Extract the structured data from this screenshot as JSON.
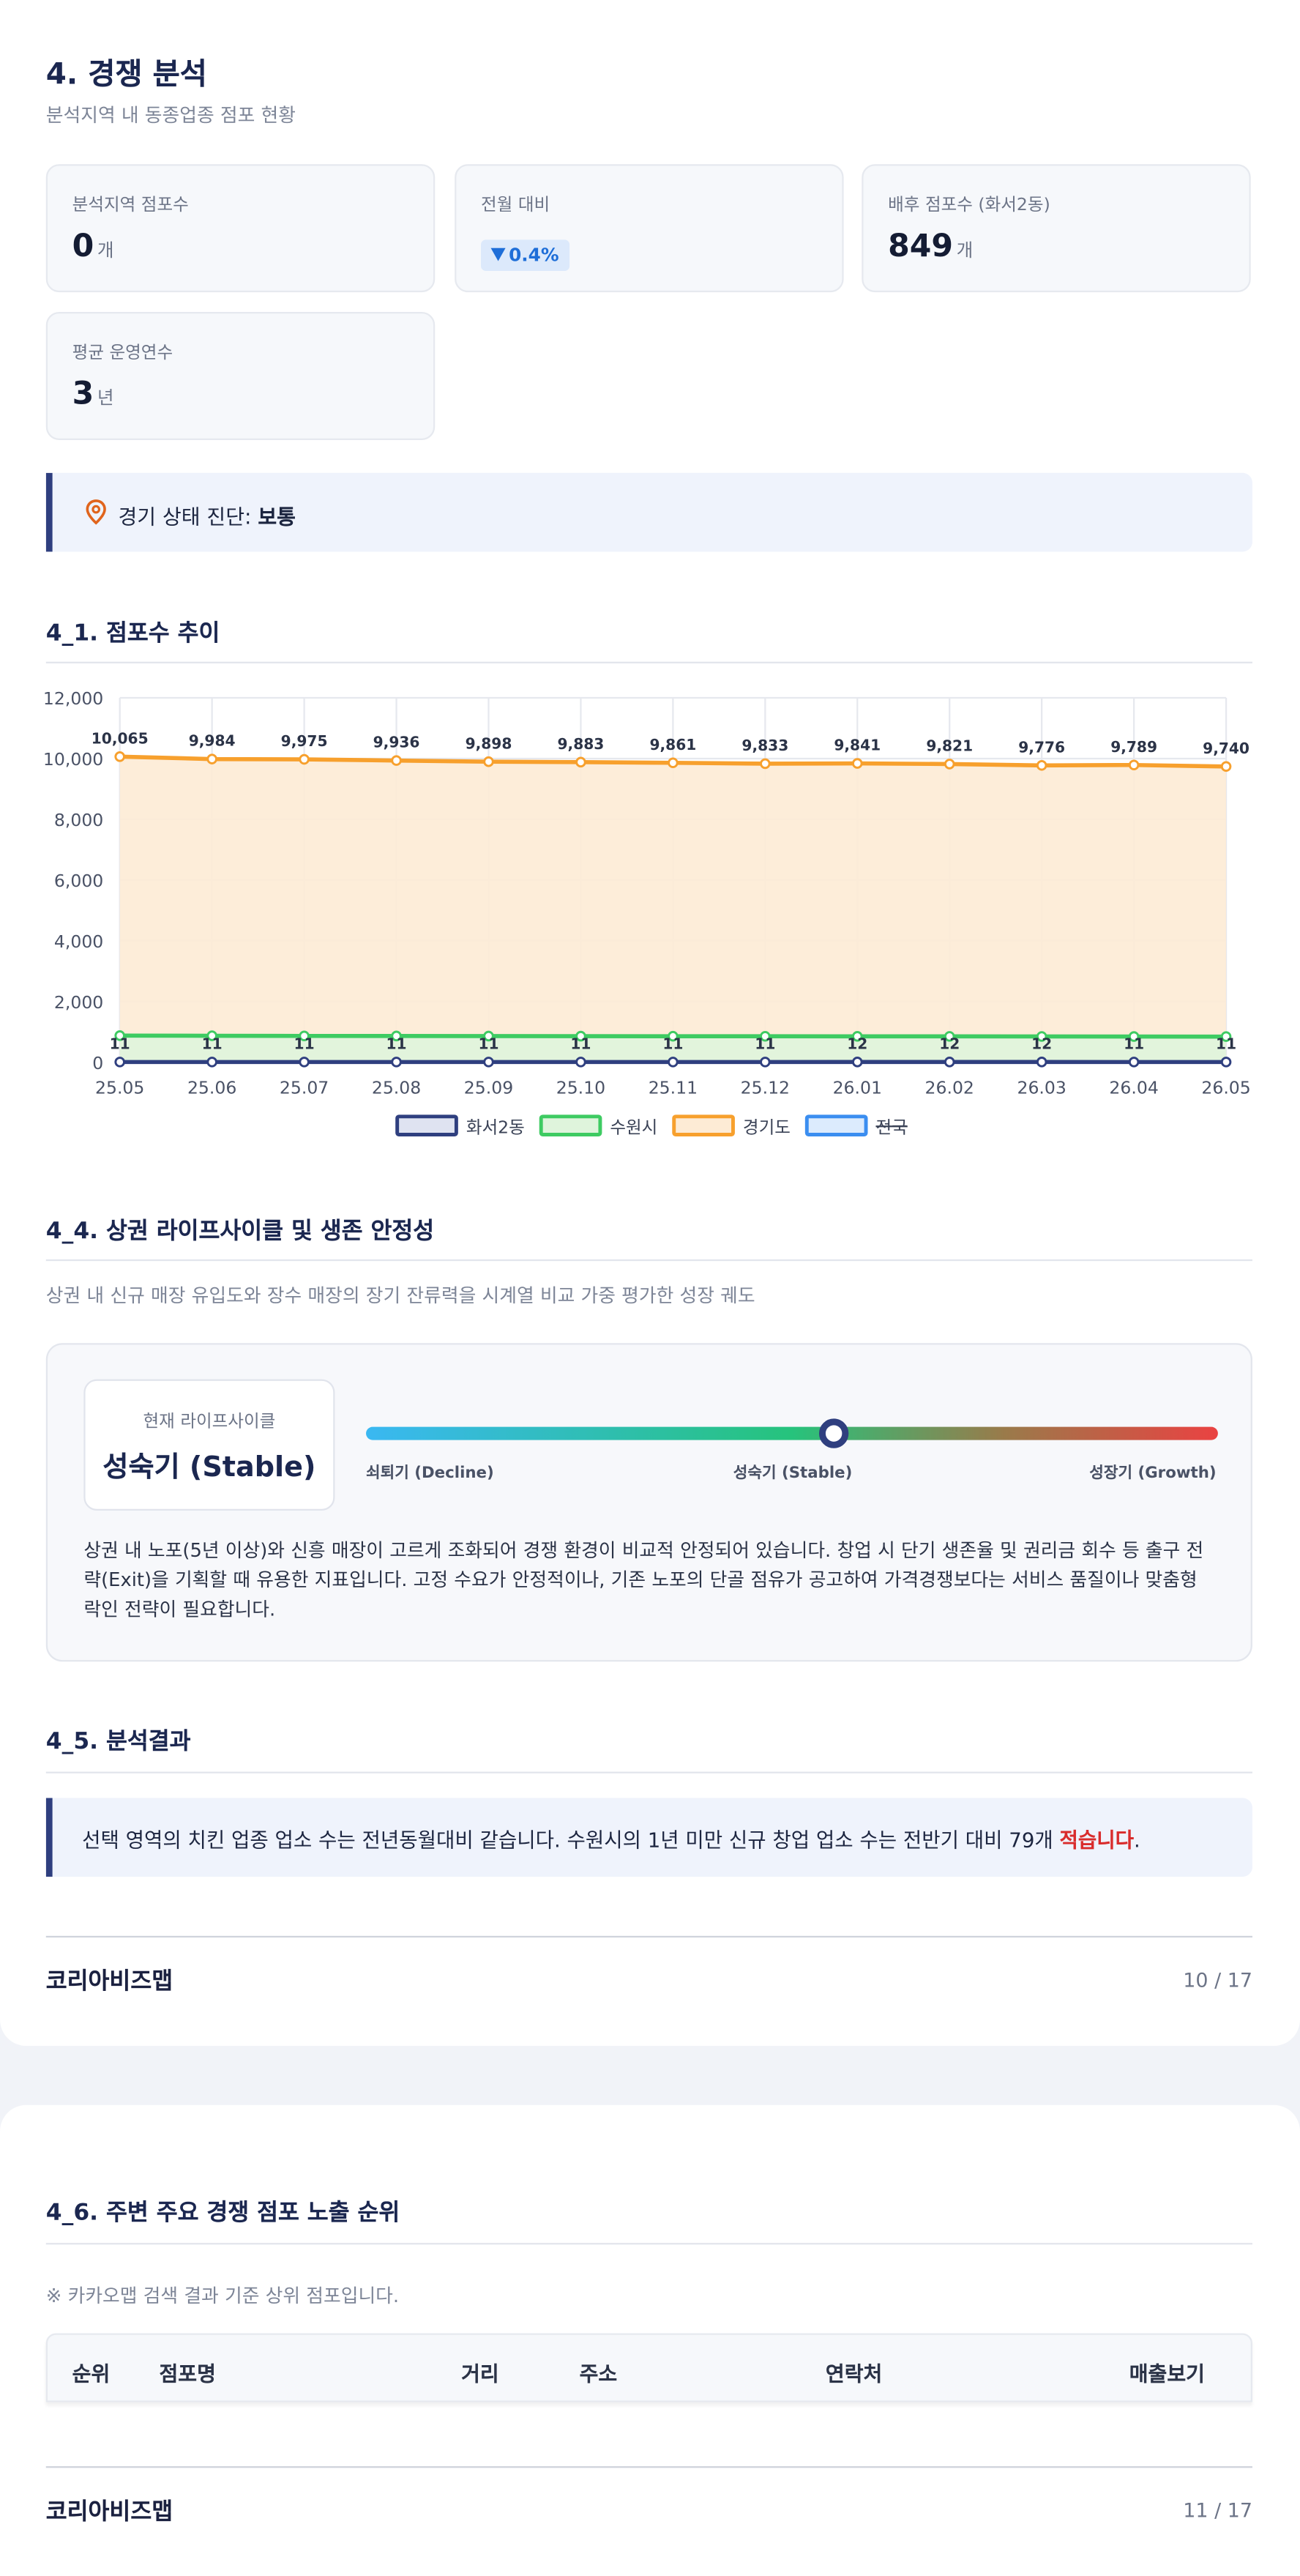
{
  "section": {
    "title": "4. 경쟁 분석",
    "subtitle": "분석지역 내 동종업종 점포 현황"
  },
  "stats": [
    {
      "label": "분석지역 점포수",
      "value": "0",
      "unit": "개"
    },
    {
      "label": "전월 대비",
      "value": "0.4%"
    },
    {
      "label": "배후 점포수 (화서2동)",
      "value": "849",
      "unit": "개"
    },
    {
      "label": "평균 운영연수",
      "value": "3",
      "unit": "년"
    }
  ],
  "diagnosis": {
    "label": "경기 상태 진단: ",
    "value": "보통"
  },
  "trend_heading": "4_1. 점포수 추이",
  "chart_data": {
    "type": "line",
    "categories": [
      "25.05",
      "25.06",
      "25.07",
      "25.08",
      "25.09",
      "25.10",
      "25.11",
      "25.12",
      "26.01",
      "26.02",
      "26.03",
      "26.04",
      "26.05"
    ],
    "ylim": [
      0,
      12000
    ],
    "yticks": [
      0,
      {
        "value": 2000,
        "label": "2,000"
      },
      {
        "value": 4000,
        "label": "4,000"
      },
      {
        "value": 6000,
        "label": "6,000"
      },
      {
        "value": 8000,
        "label": "8,000"
      },
      {
        "value": 10000,
        "label": "10,000"
      },
      {
        "value": 12000,
        "label": "12,000"
      }
    ],
    "grid": true,
    "legend": "bottom",
    "series": [
      {
        "name": "화서2동",
        "color": "#2f3f7f",
        "fill": "#dfe3f1",
        "values": [
          11,
          11,
          11,
          11,
          11,
          11,
          11,
          11,
          12,
          12,
          12,
          11,
          11
        ],
        "value_labels": [
          "11",
          "11",
          "11",
          "11",
          "11",
          "11",
          "11",
          "11",
          "12",
          "12",
          "12",
          "11",
          "11"
        ]
      },
      {
        "name": "수원시",
        "color": "#3ecb62",
        "fill": "#dff4dc",
        "values": [
          880,
          875,
          870,
          868,
          865,
          862,
          860,
          858,
          856,
          855,
          852,
          850,
          848
        ]
      },
      {
        "name": "경기도",
        "color": "#f7a02d",
        "fill": "#fdebd5",
        "values": [
          10065,
          9984,
          9975,
          9936,
          9898,
          9883,
          9861,
          9833,
          9841,
          9821,
          9776,
          9789,
          9740
        ],
        "value_labels": [
          "10,065",
          "9,984",
          "9,975",
          "9,936",
          "9,898",
          "9,883",
          "9,861",
          "9,833",
          "9,841",
          "9,821",
          "9,776",
          "9,789",
          "9,740"
        ]
      },
      {
        "name": "전국",
        "color": "#3b8ef0",
        "fill": "#dcebfd",
        "hidden": true,
        "values": [
          null,
          null,
          null,
          null,
          null,
          null,
          null,
          null,
          null,
          null,
          null,
          null,
          null
        ]
      }
    ]
  },
  "lifecycle": {
    "heading": "4_4. 상권 라이프사이클 및 생존 안정성",
    "description": "상권 내 신규 매장 유입도와 장수 매장의 장기 잔류력을 시계열 비교 가중 평가한 성장 궤도",
    "current_label": "현재 라이프사이클",
    "current_value": "성숙기 (Stable)",
    "scale": [
      "쇠퇴기 (Decline)",
      "성숙기 (Stable)",
      "성장기 (Growth)"
    ],
    "text": "상권 내 노포(5년 이상)와 신흥 매장이 고르게 조화되어 경쟁 환경이 비교적 안정되어 있습니다. 창업 시 단기 생존율 및 권리금 회수 등 출구 전략(Exit)을 기획할 때 유용한 지표입니다. 고정 수요가 안정적이나, 기존 노포의 단골 점유가 공고하여 가격경쟁보다는 서비스 품질이나 맞춤형 락인 전략이 필요합니다."
  },
  "result": {
    "heading": "4_5. 분석결과",
    "text": "선택 영역의 치킨 업종 업소 수는 전년동월대비 같습니다. 수원시의 1년 미만 신규 창업 업소 수는 전반기 대비 79개 ",
    "emphasis": "적습니다",
    "text_after": "."
  },
  "footer1": {
    "brand": "코리아비즈맵",
    "page": "10 / 17"
  },
  "ranking": {
    "heading": "4_6. 주변 주요 경쟁 점포 노출 순위",
    "note": "※ 카카오맵 검색 결과 기준 상위 점포입니다.",
    "columns": [
      "순위",
      "점포명",
      "거리",
      "주소",
      "연락처",
      "매출보기"
    ]
  },
  "footer2": {
    "brand": "코리아비즈맵",
    "page": "11 / 17"
  }
}
